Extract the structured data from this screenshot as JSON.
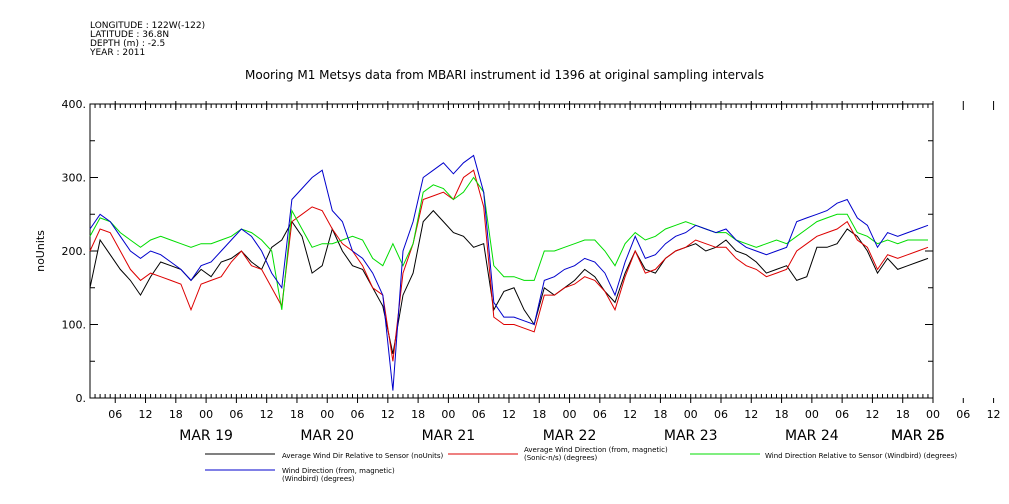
{
  "metadata": {
    "longitude": "LONGITUDE : 122W(-122)",
    "latitude": "LATITUDE : 36.8N",
    "depth": "DEPTH (m) : -2.5",
    "year": "YEAR : 2011"
  },
  "chart_data": {
    "type": "line",
    "title": "Mooring M1 Metsys data from MBARI instrument id 1396 at original sampling intervals",
    "ylabel": "noUnits",
    "xlabel": "",
    "ylim": [
      0,
      400
    ],
    "y_ticks": [
      "0.",
      "100.",
      "200.",
      "300.",
      "400."
    ],
    "x_hour_ticks": [
      "06",
      "12",
      "18",
      "00",
      "06",
      "12",
      "18",
      "00",
      "06",
      "12",
      "18",
      "00",
      "06",
      "12",
      "18",
      "00",
      "06",
      "12",
      "18",
      "00",
      "06",
      "12",
      "18",
      "00",
      "06",
      "12",
      "18",
      "00",
      "06",
      "12",
      "18",
      "00"
    ],
    "x_day_labels": [
      "MAR 19",
      "MAR 20",
      "MAR 21",
      "MAR 22",
      "MAR 23",
      "MAR 24",
      "MAR 25",
      "MAR 26"
    ],
    "x_range_hours": [
      0,
      167
    ],
    "grid": false,
    "legend_placement": "bottom",
    "series": [
      {
        "name": "Average Wind Dir Relative to Sensor (noUnits)",
        "color": "#000000",
        "x": [
          0,
          2,
          4,
          6,
          8,
          10,
          12,
          14,
          16,
          18,
          20,
          22,
          24,
          26,
          28,
          30,
          32,
          34,
          36,
          38,
          40,
          42,
          44,
          46,
          48,
          50,
          52,
          54,
          56,
          58,
          60,
          62,
          64,
          66,
          68,
          70,
          72,
          74,
          76,
          78,
          80,
          82,
          84,
          86,
          88,
          90,
          92,
          94,
          96,
          98,
          100,
          102,
          104,
          106,
          108,
          110,
          112,
          114,
          116,
          118,
          120,
          122,
          124,
          126,
          128,
          130,
          132,
          134,
          136,
          138,
          140,
          142,
          144,
          146,
          148,
          150,
          152,
          154,
          156,
          158,
          160,
          162,
          164,
          166
        ],
        "values": [
          150,
          215,
          195,
          175,
          160,
          140,
          165,
          185,
          180,
          175,
          160,
          175,
          165,
          185,
          190,
          200,
          185,
          175,
          205,
          215,
          240,
          220,
          170,
          180,
          230,
          200,
          180,
          175,
          150,
          125,
          60,
          140,
          170,
          240,
          255,
          240,
          225,
          220,
          205,
          210,
          120,
          145,
          150,
          120,
          100,
          150,
          140,
          150,
          160,
          175,
          165,
          145,
          130,
          170,
          200,
          175,
          170,
          190,
          200,
          205,
          210,
          200,
          205,
          215,
          200,
          195,
          185,
          170,
          175,
          180,
          160,
          165,
          205,
          205,
          210,
          230,
          220,
          200,
          170,
          190,
          175,
          180,
          185,
          190
        ]
      },
      {
        "name": "Average Wind Direction (from, magnetic) (Sonic-n/s) (degrees)",
        "color": "#dd0000",
        "x": [
          0,
          2,
          4,
          6,
          8,
          10,
          12,
          14,
          16,
          18,
          20,
          22,
          24,
          26,
          28,
          30,
          32,
          34,
          36,
          38,
          40,
          42,
          44,
          46,
          48,
          50,
          52,
          54,
          56,
          58,
          60,
          62,
          64,
          66,
          68,
          70,
          72,
          74,
          76,
          78,
          80,
          82,
          84,
          86,
          88,
          90,
          92,
          94,
          96,
          98,
          100,
          102,
          104,
          106,
          108,
          110,
          112,
          114,
          116,
          118,
          120,
          122,
          124,
          126,
          128,
          130,
          132,
          134,
          136,
          138,
          140,
          142,
          144,
          146,
          148,
          150,
          152,
          154,
          156,
          158,
          160,
          162,
          164,
          166
        ],
        "values": [
          200,
          230,
          225,
          200,
          175,
          160,
          170,
          165,
          160,
          155,
          120,
          155,
          160,
          165,
          185,
          200,
          180,
          175,
          150,
          125,
          240,
          250,
          260,
          255,
          230,
          210,
          200,
          180,
          150,
          140,
          50,
          170,
          210,
          270,
          275,
          280,
          270,
          300,
          310,
          260,
          110,
          100,
          100,
          95,
          90,
          140,
          140,
          150,
          155,
          165,
          160,
          145,
          120,
          165,
          200,
          170,
          175,
          190,
          200,
          205,
          215,
          210,
          205,
          205,
          190,
          180,
          175,
          165,
          170,
          175,
          200,
          210,
          220,
          225,
          230,
          240,
          215,
          205,
          175,
          195,
          190,
          195,
          200,
          205
        ]
      },
      {
        "name": "Wind Direction Relative to Sensor (Windbird) (degrees)",
        "color": "#00dd00",
        "x": [
          0,
          2,
          4,
          6,
          8,
          10,
          12,
          14,
          16,
          18,
          20,
          22,
          24,
          26,
          28,
          30,
          32,
          34,
          36,
          38,
          40,
          42,
          44,
          46,
          48,
          50,
          52,
          54,
          56,
          58,
          60,
          62,
          64,
          66,
          68,
          70,
          72,
          74,
          76,
          78,
          80,
          82,
          84,
          86,
          88,
          90,
          92,
          94,
          96,
          98,
          100,
          102,
          104,
          106,
          108,
          110,
          112,
          114,
          116,
          118,
          120,
          122,
          124,
          126,
          128,
          130,
          132,
          134,
          136,
          138,
          140,
          142,
          144,
          146,
          148,
          150,
          152,
          154,
          156,
          158,
          160,
          162,
          164,
          166
        ],
        "values": [
          220,
          245,
          240,
          225,
          215,
          205,
          215,
          220,
          215,
          210,
          205,
          210,
          210,
          215,
          220,
          230,
          225,
          215,
          200,
          120,
          255,
          230,
          205,
          210,
          210,
          215,
          220,
          215,
          190,
          180,
          210,
          180,
          210,
          280,
          290,
          285,
          270,
          280,
          300,
          280,
          180,
          165,
          165,
          160,
          160,
          200,
          200,
          205,
          210,
          215,
          215,
          200,
          180,
          210,
          225,
          215,
          220,
          230,
          235,
          240,
          235,
          230,
          225,
          225,
          215,
          210,
          205,
          210,
          215,
          210,
          220,
          230,
          240,
          245,
          250,
          250,
          225,
          220,
          210,
          215,
          210,
          215,
          215,
          215
        ]
      },
      {
        "name": "Wind Direction (from, magnetic) (Windbird) (degrees)",
        "color": "#0000cc",
        "x": [
          0,
          2,
          4,
          6,
          8,
          10,
          12,
          14,
          16,
          18,
          20,
          22,
          24,
          26,
          28,
          30,
          32,
          34,
          36,
          38,
          40,
          42,
          44,
          46,
          48,
          50,
          52,
          54,
          56,
          58,
          60,
          62,
          64,
          66,
          68,
          70,
          72,
          74,
          76,
          78,
          80,
          82,
          84,
          86,
          88,
          90,
          92,
          94,
          96,
          98,
          100,
          102,
          104,
          106,
          108,
          110,
          112,
          114,
          116,
          118,
          120,
          122,
          124,
          126,
          128,
          130,
          132,
          134,
          136,
          138,
          140,
          142,
          144,
          146,
          148,
          150,
          152,
          154,
          156,
          158,
          160,
          162,
          164,
          166
        ],
        "values": [
          230,
          250,
          240,
          220,
          200,
          190,
          200,
          195,
          185,
          175,
          160,
          180,
          185,
          200,
          215,
          230,
          220,
          200,
          170,
          150,
          270,
          285,
          300,
          310,
          255,
          240,
          200,
          190,
          170,
          140,
          10,
          200,
          240,
          300,
          310,
          320,
          305,
          320,
          330,
          280,
          130,
          110,
          110,
          105,
          100,
          160,
          165,
          175,
          180,
          190,
          185,
          170,
          140,
          185,
          220,
          190,
          195,
          210,
          220,
          225,
          235,
          230,
          225,
          230,
          215,
          205,
          200,
          195,
          200,
          205,
          240,
          245,
          250,
          255,
          265,
          270,
          245,
          235,
          205,
          225,
          220,
          225,
          230,
          235
        ]
      }
    ]
  }
}
